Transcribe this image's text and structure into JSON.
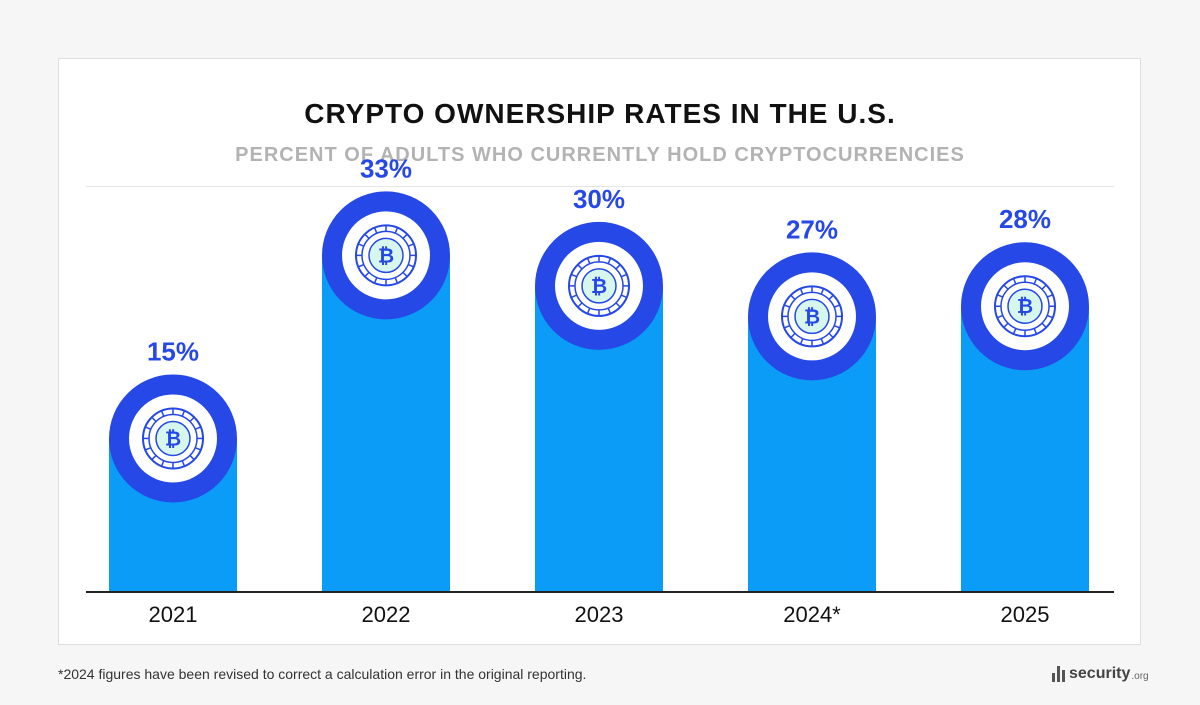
{
  "title": "CRYPTO OWNERSHIP RATES IN THE U.S.",
  "subtitle": "PERCENT OF ADULTS WHO CURRENTLY HOLD CRYPTOCURRENCIES",
  "footnote": "*2024 figures have been revised to correct a calculation error in the original reporting.",
  "brand": {
    "name": "security",
    "tld": ".org"
  },
  "colors": {
    "bar": "#0a9cf7",
    "ring": "#2548e6",
    "label": "#2548e6",
    "coin": "#d7f6ec",
    "axis": "#222222"
  },
  "chart_data": {
    "type": "bar",
    "title": "CRYPTO OWNERSHIP RATES IN THE U.S.",
    "subtitle": "PERCENT OF ADULTS WHO CURRENTLY HOLD CRYPTOCURRENCIES",
    "categories": [
      "2021",
      "2022",
      "2023",
      "2024*",
      "2025"
    ],
    "values": [
      15,
      33,
      30,
      27,
      28
    ],
    "data_labels": [
      "15%",
      "33%",
      "30%",
      "27%",
      "28%"
    ],
    "unit": "%",
    "marker_icon": "bitcoin-coin-icon",
    "grid": false,
    "legend": "none"
  }
}
